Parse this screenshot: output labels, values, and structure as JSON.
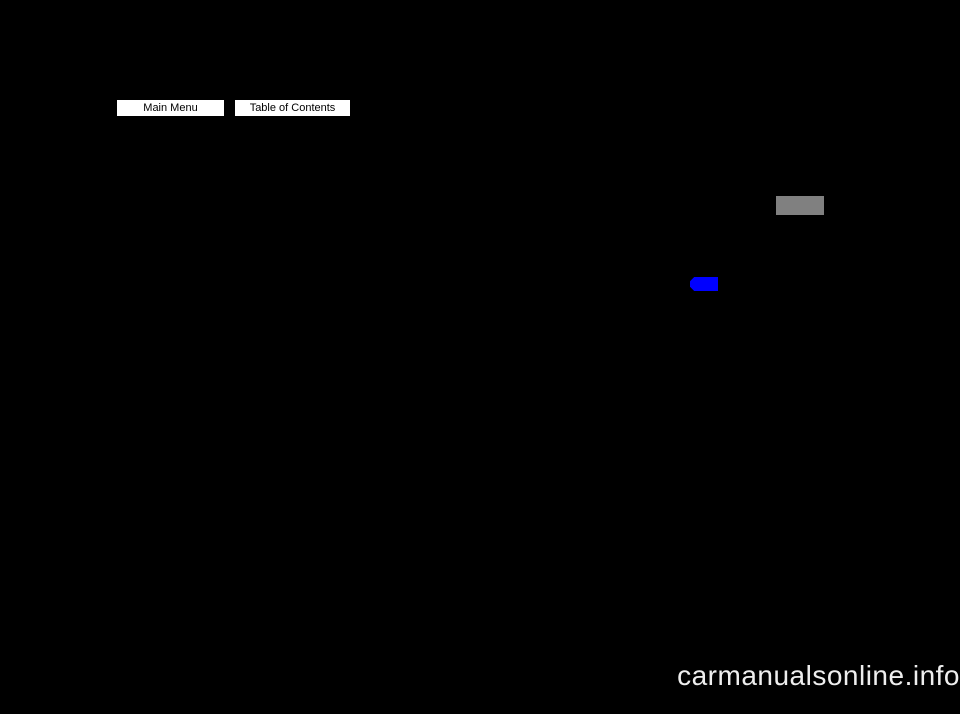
{
  "nav": {
    "mainMenu": "Main Menu",
    "toc": "Table of Contents"
  },
  "watermark": "carmanualsonline.info",
  "colors": {
    "background": "#000000",
    "buttonBg": "#ffffff",
    "buttonText": "#000000",
    "grayBox": "#808080",
    "blueShape": "#0000ff",
    "watermarkText": "#eeeeee"
  }
}
